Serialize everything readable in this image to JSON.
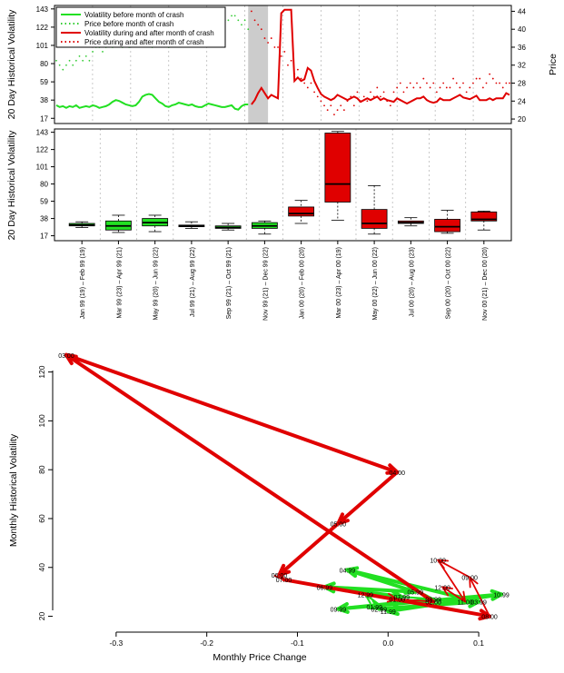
{
  "colors": {
    "green": "#22e022",
    "red": "#e00000",
    "dashed_green": "#33cc33",
    "dashed_red": "#dd0000",
    "shade": "#cccccc"
  },
  "chart_data": [
    {
      "id": "top",
      "type": "line",
      "ylabel_left": "20 Day Historical Volatility",
      "ylabel_right": "Price",
      "left_ticks": [
        17,
        38,
        59,
        80,
        101,
        122,
        143
      ],
      "right_ticks": [
        20,
        24,
        28,
        32,
        36,
        40,
        44
      ],
      "ylim_left": [
        11,
        147
      ],
      "ylim_right": [
        19,
        45.3
      ],
      "legend": [
        {
          "label": "Volatility before month of crash",
          "style": "solid",
          "color": "#22e022"
        },
        {
          "label": "Price before month of crash",
          "style": "dotted",
          "color": "#33cc33"
        },
        {
          "label": "Volatility during and after month of crash",
          "style": "solid",
          "color": "#e00000"
        },
        {
          "label": "Price during and after month of crash",
          "style": "dotted",
          "color": "#dd0000"
        }
      ],
      "shaded_period_index": [
        58,
        64
      ],
      "vol_before": [
        32,
        30,
        31,
        29,
        31,
        30,
        32,
        29,
        30,
        31,
        30,
        32,
        31,
        29,
        30,
        31,
        33,
        36,
        38,
        37,
        35,
        33,
        32,
        31,
        32,
        36,
        42,
        44,
        45,
        44,
        40,
        36,
        34,
        31,
        30,
        32,
        33,
        35,
        34,
        33,
        32,
        33,
        31,
        30,
        30,
        32,
        34,
        33,
        32,
        31,
        30,
        30,
        31,
        32,
        28,
        27,
        31,
        33,
        33
      ],
      "vol_after": [
        33,
        38,
        46,
        52,
        46,
        40,
        44,
        42,
        40,
        138,
        142,
        142,
        142,
        60,
        64,
        60,
        62,
        75,
        72,
        60,
        52,
        45,
        42,
        40,
        38,
        40,
        44,
        42,
        40,
        38,
        40,
        42,
        40,
        36,
        38,
        40,
        38,
        40,
        42,
        38,
        40,
        38,
        37,
        36,
        40,
        38,
        36,
        34,
        36,
        38,
        40,
        40,
        42,
        38,
        36,
        35,
        36,
        40,
        38,
        38,
        38,
        40,
        42,
        44,
        41,
        40,
        39,
        41,
        43,
        38,
        38,
        38,
        40,
        38,
        40,
        40,
        40,
        46,
        44
      ],
      "price_before": [
        33,
        32,
        31,
        32,
        33,
        32,
        33,
        34,
        33,
        34,
        33,
        35,
        36,
        36,
        35,
        36,
        37,
        36,
        38,
        37,
        36,
        37,
        36,
        38,
        37,
        39,
        38,
        38,
        37,
        36,
        38,
        37,
        38,
        38,
        36,
        37,
        39,
        38,
        40,
        39,
        40,
        41,
        40,
        39,
        41,
        40,
        42,
        41,
        42,
        43,
        43,
        42,
        42,
        43,
        43,
        42,
        41,
        42,
        40
      ],
      "price_after": [
        44,
        42,
        41,
        40,
        38,
        37,
        38,
        36,
        36,
        34,
        35,
        32,
        33,
        30,
        31,
        29,
        28,
        27,
        28,
        26,
        25,
        24,
        23,
        22,
        23,
        21,
        22,
        23,
        22,
        24,
        25,
        23,
        26,
        24,
        25,
        24,
        26,
        25,
        27,
        25,
        26,
        24,
        23,
        26,
        27,
        28,
        26,
        27,
        28,
        27,
        28,
        27,
        29,
        28,
        27,
        28,
        26,
        27,
        28,
        27,
        27,
        29,
        28,
        27,
        28,
        26,
        27,
        28,
        29,
        29,
        27,
        28,
        30,
        29,
        28,
        28,
        27,
        28,
        28
      ],
      "vlines_n": 11
    },
    {
      "id": "box",
      "type": "boxplot",
      "ylabel": "20 Day Historical Volatility",
      "ticks": [
        17,
        38,
        59,
        80,
        101,
        122,
        143
      ],
      "ylim": [
        11,
        147
      ],
      "categories": [
        "Jan 99 (19) – Feb 99 (19)",
        "Mar 99 (23) – Apr 99 (21)",
        "May 99 (20) – Jun 99 (22)",
        "Jul 99 (21) – Aug 99 (22)",
        "Sep 99 (21) – Oct 99 (21)",
        "Nov 99 (21) – Dec 99 (22)",
        "Jan 00 (20) – Feb 00 (20)",
        "Mar 00 (23) – Apr 00 (19)",
        "May 00 (22) – Jun 00 (22)",
        "Jul 00 (20) – Aug 00 (23)",
        "Sep 00 (20) – Oct 00 (22)",
        "Nov 00 (21) – Dec 00 (20)"
      ],
      "boxes": [
        {
          "min": 27,
          "q1": 29,
          "med": 30,
          "q3": 32,
          "max": 34,
          "color": "#22e022"
        },
        {
          "min": 21,
          "q1": 24,
          "med": 29,
          "q3": 35,
          "max": 42,
          "color": "#22e022"
        },
        {
          "min": 22,
          "q1": 29,
          "med": 33,
          "q3": 38,
          "max": 42,
          "color": "#22e022"
        },
        {
          "min": 26,
          "q1": 28,
          "med": 29,
          "q3": 30,
          "max": 34,
          "color": "#22e022"
        },
        {
          "min": 24,
          "q1": 26,
          "med": 27,
          "q3": 29,
          "max": 32,
          "color": "#22e022"
        },
        {
          "min": 19,
          "q1": 26,
          "med": 29,
          "q3": 33,
          "max": 35,
          "color": "#22e022"
        },
        {
          "min": 32,
          "q1": 41,
          "med": 44,
          "q3": 52,
          "max": 60,
          "color": "#e00000"
        },
        {
          "min": 36,
          "q1": 58,
          "med": 80,
          "q3": 142,
          "max": 144,
          "color": "#e00000"
        },
        {
          "min": 19,
          "q1": 26,
          "med": 32,
          "q3": 49,
          "max": 78,
          "color": "#e00000"
        },
        {
          "min": 29,
          "q1": 32,
          "med": 33,
          "q3": 35,
          "max": 39,
          "color": "#e00000"
        },
        {
          "min": 20,
          "q1": 22,
          "med": 28,
          "q3": 37,
          "max": 48,
          "color": "#e00000"
        },
        {
          "min": 24,
          "q1": 35,
          "med": 37,
          "q3": 46,
          "max": 47,
          "color": "#e00000"
        }
      ]
    },
    {
      "id": "scatter",
      "type": "scatter",
      "xlabel": "Monthly Price Change",
      "ylabel": "Monthly Historical Volatility",
      "xlim": [
        -0.37,
        0.15
      ],
      "ylim": [
        15,
        131
      ],
      "xticks": [
        "-0.3",
        "-0.2",
        "-0.1",
        "0.0",
        "0.1"
      ],
      "xtick_values": [
        -0.3,
        -0.2,
        -0.1,
        0.0,
        0.1
      ],
      "yticks": [
        "20",
        "40",
        "60",
        "80",
        "100",
        "120"
      ],
      "ytick_values": [
        20,
        40,
        60,
        80,
        100,
        120
      ],
      "points": [
        {
          "label": "03:00",
          "x": -0.355,
          "y": 127
        },
        {
          "label": "04:00",
          "x": 0.01,
          "y": 79
        },
        {
          "label": "05:00",
          "x": -0.055,
          "y": 58
        },
        {
          "label": "06:00",
          "x": -0.12,
          "y": 37
        },
        {
          "label": "07:00",
          "x": -0.115,
          "y": 35
        },
        {
          "label": "08:00",
          "x": 0.112,
          "y": 20
        },
        {
          "label": "09:00",
          "x": 0.09,
          "y": 36
        },
        {
          "label": "10:00",
          "x": 0.055,
          "y": 43
        },
        {
          "label": "11:00",
          "x": 0.085,
          "y": 26
        },
        {
          "label": "12:00",
          "x": 0.06,
          "y": 32
        },
        {
          "label": "01:00",
          "x": 0.01,
          "y": 27
        },
        {
          "label": "02:00",
          "x": 0.05,
          "y": 26
        },
        {
          "label": "03:99",
          "x": 0.1,
          "y": 26
        },
        {
          "label": "04:99",
          "x": -0.045,
          "y": 39
        },
        {
          "label": "05:99",
          "x": 0.03,
          "y": 30
        },
        {
          "label": "06:99",
          "x": -0.07,
          "y": 32
        },
        {
          "label": "07:99",
          "x": 0.015,
          "y": 28
        },
        {
          "label": "08:99",
          "x": 0.05,
          "y": 27
        },
        {
          "label": "09:99",
          "x": -0.055,
          "y": 23
        },
        {
          "label": "10:99",
          "x": 0.125,
          "y": 29
        },
        {
          "label": "11:99",
          "x": 0.0,
          "y": 22
        },
        {
          "label": "12:99",
          "x": -0.025,
          "y": 29
        },
        {
          "label": "01:99",
          "x": -0.015,
          "y": 24
        },
        {
          "label": "02:99",
          "x": -0.01,
          "y": 23
        }
      ],
      "green_path": [
        "01:99",
        "02:99",
        "03:99",
        "04:99",
        "05:99",
        "06:99",
        "07:99",
        "08:99",
        "09:99",
        "10:99",
        "11:99",
        "12:99"
      ],
      "red_path": [
        "12:99",
        "01:00",
        "02:00",
        "03:00",
        "04:00",
        "05:00",
        "06:00",
        "07:00",
        "08:00",
        "09:00",
        "10:00",
        "11:00",
        "12:00"
      ]
    }
  ]
}
